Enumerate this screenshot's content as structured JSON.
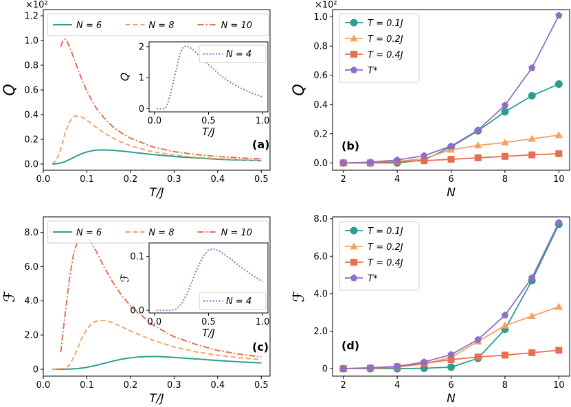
{
  "chart_data": [
    {
      "id": "a",
      "type": "line",
      "panel_label": "(a)",
      "exponent_label": "×10²",
      "xlabel": "T/J",
      "ylabel": "Q",
      "xlim": [
        0,
        0.52
      ],
      "ylim": [
        -0.05,
        1.25
      ],
      "xticks": [
        0.0,
        0.1,
        0.2,
        0.3,
        0.4,
        0.5
      ],
      "xtick_labels": [
        "0.0",
        "0.1",
        "0.2",
        "0.3",
        "0.4",
        "0.5"
      ],
      "yticks": [
        0.0,
        0.2,
        0.4,
        0.6,
        0.8,
        1.0,
        1.2
      ],
      "ytick_labels": [
        "0.0",
        "0.2",
        "0.4",
        "0.6",
        "0.8",
        "1.0",
        "1.2"
      ],
      "legend_position": "top",
      "series": [
        {
          "name": "N = 6",
          "color": "#2a9d8f",
          "dash": "solid",
          "x": [
            0.02,
            0.03,
            0.04,
            0.05,
            0.06,
            0.07,
            0.08,
            0.09,
            0.1,
            0.11,
            0.12,
            0.13,
            0.14,
            0.16,
            0.18,
            0.2,
            0.25,
            0.3,
            0.35,
            0.4,
            0.45,
            0.5
          ],
          "y": [
            0.0,
            0.002,
            0.008,
            0.02,
            0.036,
            0.054,
            0.071,
            0.086,
            0.098,
            0.106,
            0.112,
            0.114,
            0.114,
            0.111,
            0.105,
            0.097,
            0.077,
            0.061,
            0.049,
            0.039,
            0.032,
            0.027
          ]
        },
        {
          "name": "N = 8",
          "color": "#f4a261",
          "dash": "dashed",
          "x": [
            0.02,
            0.03,
            0.04,
            0.05,
            0.06,
            0.07,
            0.08,
            0.09,
            0.1,
            0.12,
            0.14,
            0.16,
            0.18,
            0.2,
            0.25,
            0.3,
            0.35,
            0.4,
            0.45,
            0.5
          ],
          "y": [
            0.0,
            0.03,
            0.12,
            0.25,
            0.34,
            0.385,
            0.39,
            0.378,
            0.355,
            0.3,
            0.25,
            0.21,
            0.175,
            0.148,
            0.1,
            0.072,
            0.055,
            0.044,
            0.036,
            0.03
          ]
        },
        {
          "name": "N = 10",
          "color": "#e76f51",
          "dash": "dashdot",
          "x": [
            0.04,
            0.045,
            0.05,
            0.055,
            0.06,
            0.07,
            0.08,
            0.09,
            0.1,
            0.12,
            0.14,
            0.16,
            0.18,
            0.2,
            0.25,
            0.3,
            0.35,
            0.4,
            0.45,
            0.5
          ],
          "y": [
            0.95,
            1.0,
            1.01,
            0.99,
            0.95,
            0.86,
            0.76,
            0.67,
            0.59,
            0.46,
            0.37,
            0.3,
            0.25,
            0.21,
            0.14,
            0.1,
            0.077,
            0.061,
            0.05,
            0.042
          ]
        }
      ],
      "inset": {
        "xlabel": "T/J",
        "ylabel": "Q",
        "xlim": [
          -0.05,
          1.05
        ],
        "ylim": [
          -0.1,
          2.15
        ],
        "xticks": [
          0.0,
          0.5,
          1.0
        ],
        "xtick_labels": [
          "0.0",
          "0.5",
          "1.0"
        ],
        "yticks": [
          0,
          1,
          2
        ],
        "ytick_labels": [
          "0",
          "1",
          "2"
        ],
        "series": [
          {
            "name": "N = 4",
            "color": "#8e6fc7",
            "dash": "dotted",
            "x": [
              0.02,
              0.08,
              0.1,
              0.12,
              0.15,
              0.18,
              0.21,
              0.24,
              0.27,
              0.3,
              0.35,
              0.4,
              0.5,
              0.6,
              0.7,
              0.8,
              0.9,
              1.0
            ],
            "y": [
              0.0,
              0.0,
              0.02,
              0.15,
              0.5,
              0.95,
              1.4,
              1.8,
              2.0,
              2.02,
              1.92,
              1.75,
              1.42,
              1.1,
              0.85,
              0.66,
              0.5,
              0.38
            ]
          }
        ]
      }
    },
    {
      "id": "b",
      "type": "line",
      "panel_label": "(b)",
      "exponent_label": "×10²",
      "xlabel": "N",
      "ylabel": "Q",
      "xlim": [
        1.6,
        10.4
      ],
      "ylim": [
        -0.05,
        1.05
      ],
      "xticks": [
        2,
        4,
        6,
        8,
        10
      ],
      "xtick_labels": [
        "2",
        "4",
        "6",
        "8",
        "10"
      ],
      "yticks": [
        0.0,
        0.2,
        0.4,
        0.6,
        0.8,
        1.0
      ],
      "ytick_labels": [
        "0.0",
        "0.2",
        "0.4",
        "0.6",
        "0.8",
        "1.0"
      ],
      "legend_position": "top-left",
      "series": [
        {
          "name": "T = 0.1J",
          "color": "#2a9d8f",
          "marker": "circle",
          "x": [
            2,
            3,
            4,
            5,
            6,
            7,
            8,
            9,
            10
          ],
          "y": [
            0.0,
            0.0,
            0.0,
            0.02,
            0.11,
            0.22,
            0.35,
            0.46,
            0.54
          ]
        },
        {
          "name": "T = 0.2J",
          "color": "#f4a261",
          "marker": "triangle",
          "x": [
            2,
            3,
            4,
            5,
            6,
            7,
            8,
            9,
            10
          ],
          "y": [
            0.0,
            0.0,
            0.01,
            0.03,
            0.09,
            0.12,
            0.14,
            0.165,
            0.19
          ]
        },
        {
          "name": "T = 0.4J",
          "color": "#e76f51",
          "marker": "square",
          "x": [
            2,
            3,
            4,
            5,
            6,
            7,
            8,
            9,
            10
          ],
          "y": [
            0.0,
            0.0,
            0.01,
            0.015,
            0.025,
            0.035,
            0.045,
            0.055,
            0.063
          ]
        },
        {
          "name": "T*",
          "color": "#8e6fc7",
          "marker": "pentagon",
          "x": [
            2,
            3,
            4,
            5,
            6,
            7,
            8,
            9,
            10
          ],
          "y": [
            0.0,
            0.005,
            0.02,
            0.05,
            0.115,
            0.225,
            0.395,
            0.65,
            1.01
          ]
        }
      ]
    },
    {
      "id": "c",
      "type": "line",
      "panel_label": "(c)",
      "exponent_label": "",
      "xlabel": "T/J",
      "ylabel": "ℱ",
      "xlim": [
        0,
        0.52
      ],
      "ylim": [
        -0.4,
        8.9
      ],
      "xticks": [
        0.0,
        0.1,
        0.2,
        0.3,
        0.4,
        0.5
      ],
      "xtick_labels": [
        "0.0",
        "0.1",
        "0.2",
        "0.3",
        "0.4",
        "0.5"
      ],
      "yticks": [
        0,
        2,
        4,
        6,
        8
      ],
      "ytick_labels": [
        "0",
        "2.0",
        "4.0",
        "6.0",
        "8.0"
      ],
      "legend_position": "top",
      "series": [
        {
          "name": "N = 6",
          "color": "#2a9d8f",
          "dash": "solid",
          "x": [
            0.02,
            0.04,
            0.06,
            0.08,
            0.1,
            0.12,
            0.14,
            0.16,
            0.18,
            0.2,
            0.22,
            0.24,
            0.26,
            0.28,
            0.3,
            0.35,
            0.4,
            0.45,
            0.5
          ],
          "y": [
            0.0,
            0.0,
            0.01,
            0.04,
            0.11,
            0.22,
            0.35,
            0.48,
            0.59,
            0.67,
            0.72,
            0.74,
            0.74,
            0.72,
            0.69,
            0.6,
            0.51,
            0.43,
            0.37
          ]
        },
        {
          "name": "N = 8",
          "color": "#f4a261",
          "dash": "dashed",
          "x": [
            0.02,
            0.05,
            0.06,
            0.07,
            0.08,
            0.09,
            0.1,
            0.11,
            0.12,
            0.13,
            0.14,
            0.15,
            0.16,
            0.18,
            0.2,
            0.25,
            0.3,
            0.35,
            0.4,
            0.45,
            0.5
          ],
          "y": [
            0.0,
            0.05,
            0.25,
            0.7,
            1.3,
            1.9,
            2.35,
            2.65,
            2.8,
            2.85,
            2.84,
            2.79,
            2.7,
            2.48,
            2.24,
            1.7,
            1.3,
            1.02,
            0.82,
            0.67,
            0.56
          ]
        },
        {
          "name": "N = 10",
          "color": "#e76f51",
          "dash": "dashdot",
          "x": [
            0.04,
            0.05,
            0.06,
            0.07,
            0.08,
            0.09,
            0.1,
            0.11,
            0.12,
            0.14,
            0.16,
            0.18,
            0.2,
            0.25,
            0.3,
            0.35,
            0.4,
            0.45,
            0.5
          ],
          "y": [
            1.0,
            3.2,
            5.3,
            6.8,
            7.6,
            7.85,
            7.75,
            7.4,
            6.95,
            5.95,
            5.05,
            4.3,
            3.7,
            2.6,
            1.9,
            1.45,
            1.1,
            0.88,
            0.72
          ]
        }
      ],
      "inset": {
        "xlabel": "T/J",
        "ylabel": "ℱ",
        "xlim": [
          -0.05,
          1.05
        ],
        "ylim": [
          -0.005,
          0.125
        ],
        "xticks": [
          0.0,
          0.5,
          1.0
        ],
        "xtick_labels": [
          "0.0",
          "0.5",
          "1.0"
        ],
        "yticks": [
          0.0,
          0.1
        ],
        "ytick_labels": [
          "0.0",
          "0.1"
        ],
        "series": [
          {
            "name": "N = 4",
            "color": "#8e6fc7",
            "dash": "dotted",
            "x": [
              0.02,
              0.15,
              0.2,
              0.25,
              0.3,
              0.35,
              0.4,
              0.45,
              0.5,
              0.55,
              0.6,
              0.7,
              0.8,
              0.9,
              1.0
            ],
            "y": [
              0.0,
              0.0,
              0.002,
              0.012,
              0.03,
              0.055,
              0.08,
              0.1,
              0.112,
              0.114,
              0.11,
              0.096,
              0.08,
              0.066,
              0.053
            ]
          }
        ]
      }
    },
    {
      "id": "d",
      "type": "line",
      "panel_label": "(d)",
      "exponent_label": "",
      "xlabel": "N",
      "ylabel": "ℱ",
      "xlim": [
        1.6,
        10.4
      ],
      "ylim": [
        -0.4,
        8.1
      ],
      "xticks": [
        2,
        4,
        6,
        8,
        10
      ],
      "xtick_labels": [
        "2",
        "4",
        "6",
        "8",
        "10"
      ],
      "yticks": [
        0,
        2,
        4,
        6,
        8
      ],
      "ytick_labels": [
        "0",
        "2.0",
        "4.0",
        "6.0",
        "8.0"
      ],
      "legend_position": "top-left",
      "series": [
        {
          "name": "T = 0.1J",
          "color": "#2a9d8f",
          "marker": "circle",
          "x": [
            2,
            3,
            4,
            5,
            6,
            7,
            8,
            9,
            10
          ],
          "y": [
            0.0,
            0.0,
            0.0,
            0.02,
            0.08,
            0.55,
            2.1,
            4.7,
            7.7
          ]
        },
        {
          "name": "T = 0.2J",
          "color": "#f4a261",
          "marker": "triangle",
          "x": [
            2,
            3,
            4,
            5,
            6,
            7,
            8,
            9,
            10
          ],
          "y": [
            0.0,
            0.02,
            0.08,
            0.25,
            0.6,
            1.45,
            2.3,
            2.8,
            3.3
          ]
        },
        {
          "name": "T = 0.4J",
          "color": "#e76f51",
          "marker": "square",
          "x": [
            2,
            3,
            4,
            5,
            6,
            7,
            8,
            9,
            10
          ],
          "y": [
            0.0,
            0.03,
            0.1,
            0.28,
            0.48,
            0.62,
            0.72,
            0.85,
            0.98
          ]
        },
        {
          "name": "T*",
          "color": "#8e6fc7",
          "marker": "pentagon",
          "x": [
            2,
            3,
            4,
            5,
            6,
            7,
            8,
            9,
            10
          ],
          "y": [
            0.0,
            0.05,
            0.12,
            0.35,
            0.75,
            1.55,
            2.85,
            4.85,
            7.8
          ]
        }
      ]
    }
  ]
}
